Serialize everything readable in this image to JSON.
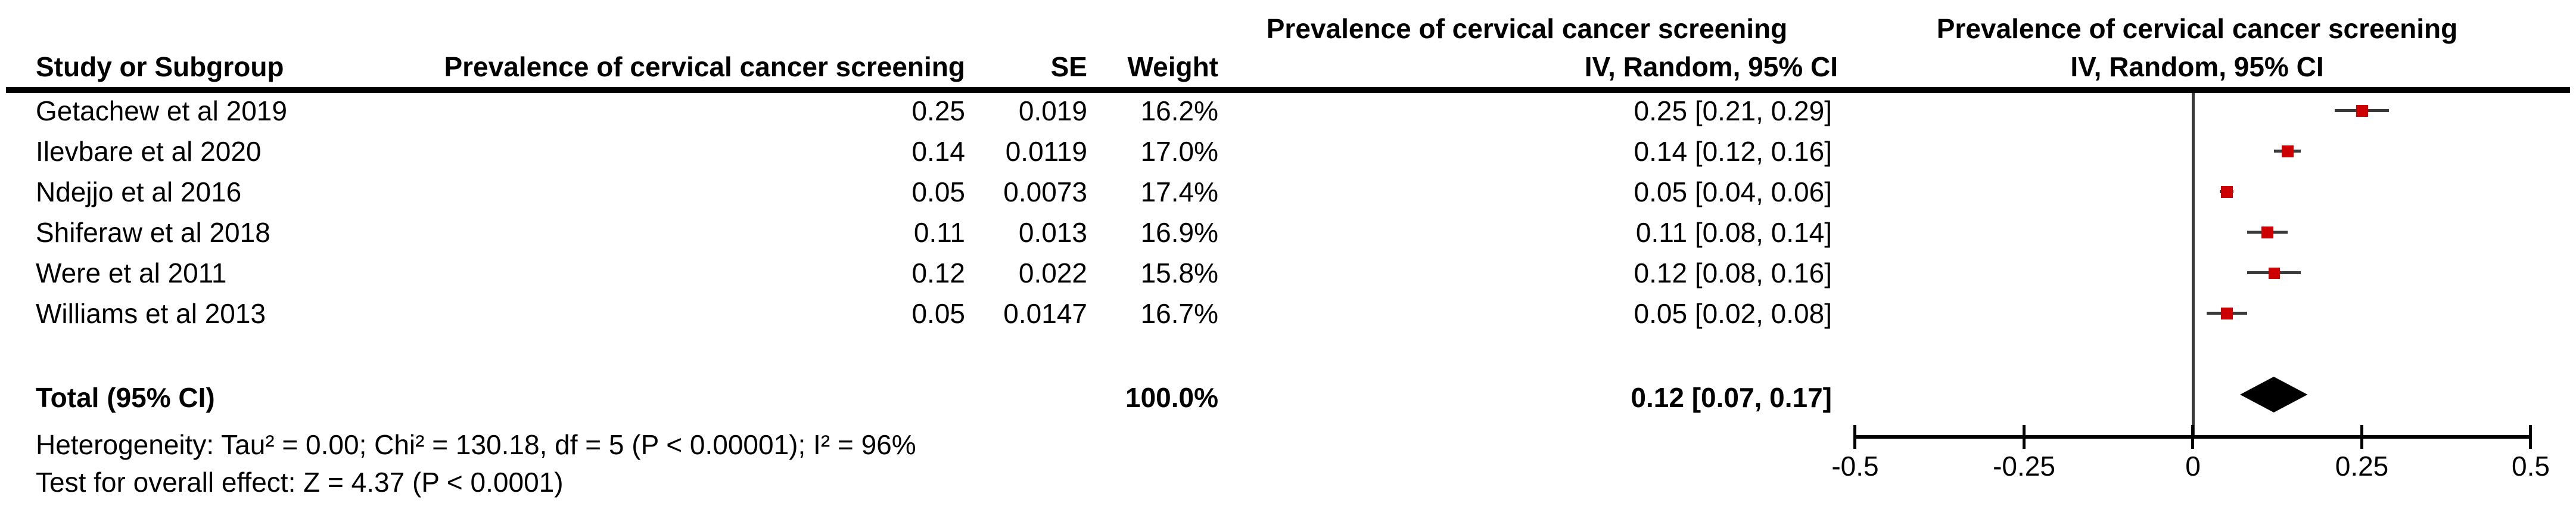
{
  "chart_data": {
    "type": "scatter",
    "subtype": "forest-plot (meta-analysis, inverse-variance random effects)",
    "title": "",
    "header": {
      "col_study": "Study or Subgroup",
      "col_effect": "Prevalence of cervical cancer screening",
      "col_se": "SE",
      "col_weight": "Weight",
      "ci_col_title": "Prevalence of cervical cancer screening",
      "ci_col_subtitle": "IV, Random, 95% CI",
      "plot_title": "Prevalence of cervical cancer screening",
      "plot_subtitle": "IV, Random, 95% CI"
    },
    "studies": [
      {
        "name": "Getachew et al 2019",
        "effect": "0.25",
        "se": "0.019",
        "weight": "16.2%",
        "weight_pct": 16.2,
        "ci": "0.25 [0.21, 0.29]",
        "est": 0.25,
        "lo": 0.21,
        "hi": 0.29
      },
      {
        "name": "Ilevbare et al 2020",
        "effect": "0.14",
        "se": "0.0119",
        "weight": "17.0%",
        "weight_pct": 17.0,
        "ci": "0.14 [0.12, 0.16]",
        "est": 0.14,
        "lo": 0.12,
        "hi": 0.16
      },
      {
        "name": "Ndejjo et al 2016",
        "effect": "0.05",
        "se": "0.0073",
        "weight": "17.4%",
        "weight_pct": 17.4,
        "ci": "0.05 [0.04, 0.06]",
        "est": 0.05,
        "lo": 0.04,
        "hi": 0.06
      },
      {
        "name": "Shiferaw et al 2018",
        "effect": "0.11",
        "se": "0.013",
        "weight": "16.9%",
        "weight_pct": 16.9,
        "ci": "0.11 [0.08, 0.14]",
        "est": 0.11,
        "lo": 0.08,
        "hi": 0.14
      },
      {
        "name": "Were et al 2011",
        "effect": "0.12",
        "se": "0.022",
        "weight": "15.8%",
        "weight_pct": 15.8,
        "ci": "0.12 [0.08, 0.16]",
        "est": 0.12,
        "lo": 0.08,
        "hi": 0.16
      },
      {
        "name": "Williams et al 2013",
        "effect": "0.05",
        "se": "0.0147",
        "weight": "16.7%",
        "weight_pct": 16.7,
        "ci": "0.05 [0.02, 0.08]",
        "est": 0.05,
        "lo": 0.02,
        "hi": 0.08
      }
    ],
    "total": {
      "label": "Total (95% CI)",
      "weight": "100.0%",
      "ci": "0.12 [0.07, 0.17]",
      "est": 0.12,
      "lo": 0.07,
      "hi": 0.17
    },
    "footnotes": {
      "heterogeneity": "Heterogeneity: Tau² = 0.00; Chi² = 130.18, df = 5 (P < 0.00001); I² = 96%",
      "overall_effect": "Test for overall effect: Z = 4.37 (P < 0.0001)"
    },
    "axis": {
      "xlim": [
        -0.5,
        0.5
      ],
      "ticks": [
        -0.5,
        -0.25,
        0,
        0.25,
        0.5
      ],
      "tick_labels": [
        "-0.5",
        "-0.25",
        "0",
        "0.25",
        "0.5"
      ],
      "grid": false,
      "zero_line": true
    },
    "colors": {
      "square": "#CC0000",
      "ci_line": "#3A3A3A",
      "diamond": "#000000",
      "axis": "#000000",
      "zero_line": "#3A3A3A",
      "text": "#000000"
    }
  }
}
